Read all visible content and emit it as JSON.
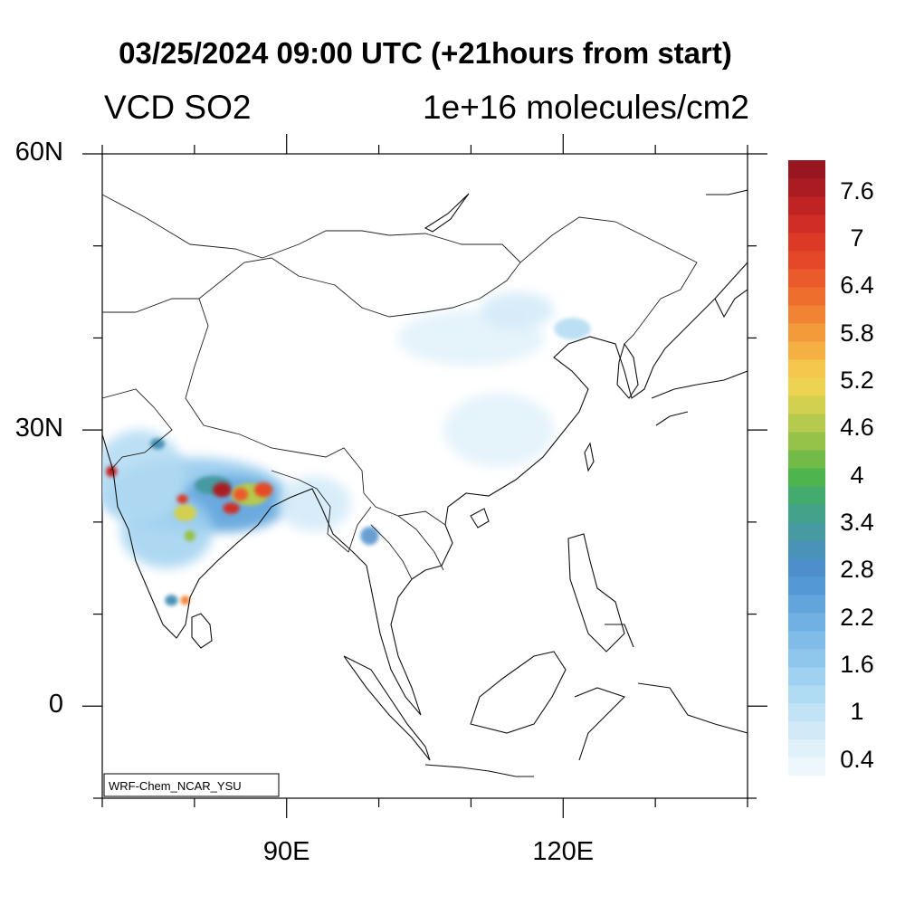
{
  "title": "03/25/2024 09:00 UTC (+21hours from start)",
  "variable": "VCD SO2",
  "units": "1e+16 molecules/cm2",
  "model_label": "WRF-Chem_NCAR_YSU",
  "map": {
    "lat_labels": [
      {
        "lat": 60,
        "text": "60N"
      },
      {
        "lat": 30,
        "text": "30N"
      },
      {
        "lat": 0,
        "text": "0"
      }
    ],
    "lon_labels": [
      {
        "lon": 90,
        "text": "90E"
      },
      {
        "lon": 120,
        "text": "120E"
      }
    ],
    "extent": {
      "lon_min": 70,
      "lon_max": 140,
      "lat_min": -10,
      "lat_max": 60
    }
  },
  "colorbar": {
    "labels": [
      "7.6",
      "7",
      "6.4",
      "5.8",
      "5.2",
      "4.6",
      "4",
      "3.4",
      "2.8",
      "2.2",
      "1.6",
      "1",
      "0.4"
    ],
    "colors": [
      "#eef7fc",
      "#e1f1fa",
      "#d2eaf8",
      "#c2e3f6",
      "#b1daf3",
      "#a0d1f0",
      "#8fc7ec",
      "#80bce7",
      "#71b0e2",
      "#62a4dc",
      "#5598d6",
      "#4e8fcb",
      "#4a93b8",
      "#479aa2",
      "#45a28a",
      "#44ab6e",
      "#4eb44d",
      "#72bb48",
      "#95c34a",
      "#b6ca4d",
      "#d3d04f",
      "#ecd452",
      "#f6c74d",
      "#f5b043",
      "#f39a3b",
      "#f18434",
      "#ee6e2e",
      "#eb5a2a",
      "#e54828",
      "#dc3a26",
      "#cf2d25",
      "#bf2324",
      "#ab1c22",
      "#981620"
    ]
  },
  "plumes": [
    {
      "lon": 80,
      "lat": 23,
      "rx": 10,
      "ry": 4,
      "value": 1.8
    },
    {
      "lon": 84,
      "lat": 22,
      "rx": 6,
      "ry": 3,
      "value": 2.3
    },
    {
      "lon": 77,
      "lat": 19,
      "rx": 5,
      "ry": 4,
      "value": 1.5
    },
    {
      "lon": 74,
      "lat": 25,
      "rx": 5,
      "ry": 5,
      "value": 1.2
    },
    {
      "lon": 82,
      "lat": 24,
      "rx": 2,
      "ry": 1,
      "value": 3.2
    },
    {
      "lon": 86,
      "lat": 23,
      "rx": 2,
      "ry": 1.2,
      "value": 4.6
    },
    {
      "lon": 83,
      "lat": 23.5,
      "rx": 1,
      "ry": 0.8,
      "value": 7.6
    },
    {
      "lon": 87.5,
      "lat": 23.5,
      "rx": 1,
      "ry": 0.8,
      "value": 6.8
    },
    {
      "lon": 85,
      "lat": 23,
      "rx": 0.8,
      "ry": 0.7,
      "value": 6.4
    },
    {
      "lon": 84,
      "lat": 21.5,
      "rx": 0.9,
      "ry": 0.6,
      "value": 7.2
    },
    {
      "lon": 79,
      "lat": 21,
      "rx": 1.2,
      "ry": 0.9,
      "value": 5.0
    },
    {
      "lon": 78.7,
      "lat": 22.5,
      "rx": 0.6,
      "ry": 0.5,
      "value": 7.0
    },
    {
      "lon": 79.5,
      "lat": 18.5,
      "rx": 0.6,
      "ry": 0.6,
      "value": 4.4
    },
    {
      "lon": 71,
      "lat": 25.5,
      "rx": 0.6,
      "ry": 0.6,
      "value": 7.4
    },
    {
      "lon": 76,
      "lat": 28.5,
      "rx": 0.8,
      "ry": 0.6,
      "value": 3.0
    },
    {
      "lon": 77.5,
      "lat": 11.5,
      "rx": 0.7,
      "ry": 0.6,
      "value": 3.0
    },
    {
      "lon": 79,
      "lat": 11.5,
      "rx": 0.5,
      "ry": 0.5,
      "value": 6.0
    },
    {
      "lon": 99,
      "lat": 18.5,
      "rx": 1,
      "ry": 1,
      "value": 2.8
    },
    {
      "lon": 110,
      "lat": 40,
      "rx": 8,
      "ry": 3,
      "value": 0.6
    },
    {
      "lon": 115,
      "lat": 43,
      "rx": 4,
      "ry": 2,
      "value": 0.8
    },
    {
      "lon": 121,
      "lat": 41,
      "rx": 2,
      "ry": 1.2,
      "value": 1.2
    },
    {
      "lon": 113,
      "lat": 30,
      "rx": 6,
      "ry": 4,
      "value": 0.5
    },
    {
      "lon": 93,
      "lat": 22,
      "rx": 4,
      "ry": 3,
      "value": 0.8
    }
  ]
}
